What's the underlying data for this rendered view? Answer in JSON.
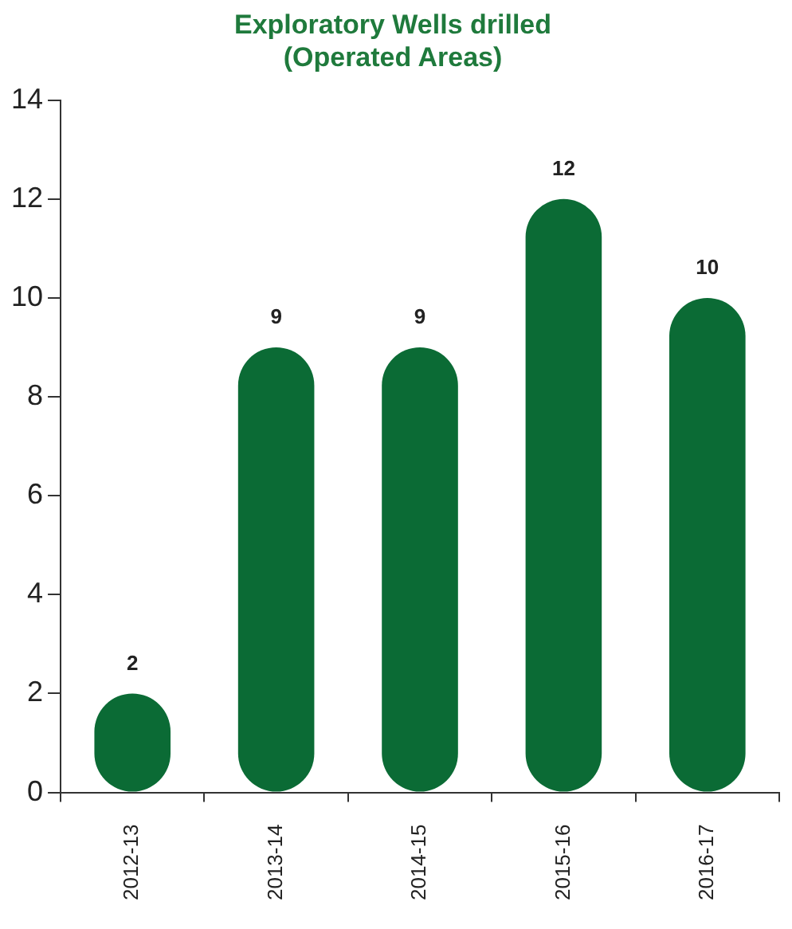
{
  "chart_data": {
    "type": "bar",
    "title": [
      "Exploratory Wells drilled",
      "(Operated Areas)"
    ],
    "categories": [
      "2012-13",
      "2013-14",
      "2014-15",
      "2015-16",
      "2016-17"
    ],
    "values": [
      2,
      9,
      9,
      12,
      10
    ],
    "color": "#0b6b35",
    "ylim": [
      0,
      14
    ],
    "yticks": [
      0,
      2,
      4,
      6,
      8,
      10,
      12,
      14
    ],
    "grid": false,
    "data_labels": true
  }
}
